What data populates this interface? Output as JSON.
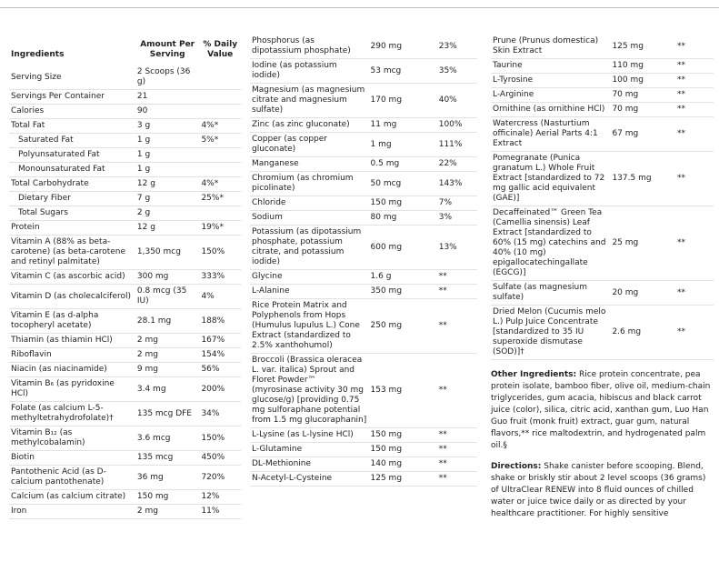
{
  "header": [
    "Ingredients",
    "Amount Per Serving",
    "% Daily Value"
  ],
  "columns": [
    [
      [
        "Serving Size",
        "2 Scoops (36 g)"
      ],
      [
        "Servings Per Container",
        "21"
      ],
      [
        "Calories",
        "90"
      ],
      [
        "Total Fat",
        "3 g",
        "4%*"
      ],
      [
        "Saturated Fat",
        "1 g",
        "5%*"
      ],
      [
        "Polyunsaturated Fat",
        "1 g"
      ],
      [
        "Monounsaturated Fat",
        "1 g"
      ],
      [
        "Total Carbohydrate",
        "12 g",
        "4%*"
      ],
      [
        "Dietary Fiber",
        "7 g",
        "25%*"
      ],
      [
        "Total Sugars",
        "2 g"
      ],
      [
        "Protein",
        "12 g",
        "19%*"
      ],
      [
        "Vitamin A (88% as beta-carotene) (as beta-carotene and retinyl palmitate)",
        "1,350 mcg",
        "150%"
      ],
      [
        "Vitamin C (as ascorbic acid)",
        "300 mg",
        "333%"
      ],
      [
        "Vitamin D (as cholecalciferol)",
        "0.8 mcg (35 IU)",
        "4%"
      ],
      [
        "Vitamin E (as d-alpha tocopheryl acetate)",
        "28.1 mg",
        "188%"
      ],
      [
        "Thiamin (as thiamin HCl)",
        "2 mg",
        "167%"
      ],
      [
        "Riboflavin",
        "2 mg",
        "154%"
      ],
      [
        "Niacin (as niacinamide)",
        "9 mg",
        "56%"
      ],
      [
        "Vitamin B₆ (as pyridoxine HCl)",
        "3.4 mg",
        "200%"
      ],
      [
        "Folate (as calcium L-5-methyltetrahydrofolate)†",
        "135 mcg DFE",
        "34%"
      ],
      [
        "Vitamin B₁₂ (as methylcobalamin)",
        "3.6 mcg",
        "150%"
      ],
      [
        "Biotin",
        "135 mcg",
        "450%"
      ],
      [
        "Pantothenic Acid (as D-calcium pantothenate)",
        "36 mg",
        "720%"
      ],
      [
        "Calcium (as calcium citrate)",
        "150 mg",
        "12%"
      ],
      [
        "Iron",
        "2 mg",
        "11%"
      ]
    ],
    [
      [
        "Phosphorus (as dipotassium phosphate)",
        "290 mg",
        "23%"
      ],
      [
        "Iodine (as potassium iodide)",
        "53 mcg",
        "35%"
      ],
      [
        "Magnesium (as magnesium citrate and magnesium sulfate)",
        "170 mg",
        "40%"
      ],
      [
        "Zinc (as zinc gluconate)",
        "11 mg",
        "100%"
      ],
      [
        "Copper (as copper gluconate)",
        "1 mg",
        "111%"
      ],
      [
        "Manganese",
        "0.5 mg",
        "22%"
      ],
      [
        "Chromium (as chromium picolinate)",
        "50 mcg",
        "143%"
      ],
      [
        "Chloride",
        "150 mg",
        "7%"
      ],
      [
        "Sodium",
        "80 mg",
        "3%"
      ],
      [
        "Potassium (as dipotassium phosphate, potassium citrate, and potassium iodide)",
        "600 mg",
        "13%"
      ],
      [
        "Glycine",
        "1.6 g",
        "**"
      ],
      [
        "L-Alanine",
        "350 mg",
        "**"
      ],
      [
        "Rice Protein Matrix and Polyphenols from Hops (Humulus lupulus L.) Cone Extract (standardized to 2.5% xanthohumol)",
        "250 mg",
        "**"
      ],
      [
        "Broccoli (Brassica oleracea L. var. italica) Sprout and Floret Powder™ (myrosinase activity 30 mg glucose/g) [providing 0.75 mg sulforaphane potential from 1.5 mg glucoraphanin]",
        "153 mg",
        "**"
      ],
      [
        "L-Lysine (as L-lysine HCl)",
        "150 mg",
        "**"
      ],
      [
        "L-Glutamine",
        "150 mg",
        "**"
      ],
      [
        "DL-Methionine",
        "140 mg",
        "**"
      ],
      [
        "N-Acetyl-L-Cysteine",
        "125 mg",
        "**"
      ]
    ],
    [
      [
        "Prune (Prunus domestica) Skin Extract",
        "125 mg",
        "**"
      ],
      [
        "Taurine",
        "110 mg",
        "**"
      ],
      [
        "L-Tyrosine",
        "100 mg",
        "**"
      ],
      [
        "L-Arginine",
        "70 mg",
        "**"
      ],
      [
        "Ornithine (as ornithine HCl)",
        "70 mg",
        "**"
      ],
      [
        "Watercress (Nasturtium officinale) Aerial Parts 4:1 Extract",
        "67 mg",
        "**"
      ],
      [
        "Pomegranate (Punica granatum L.) Whole Fruit Extract [standardized to 72 mg gallic acid equivalent (GAE)]",
        "137.5 mg",
        "**"
      ],
      [
        "Decaffeinated™ Green Tea (Camellia sinensis) Leaf Extract [standardized to 60% (15 mg) catechins and 40% (10 mg) epigallocatechingallate (EGCG)]",
        "25 mg",
        "**"
      ],
      [
        "Sulfate (as magnesium sulfate)",
        "20 mg",
        "**"
      ],
      [
        "Dried Melon (Cucumis melo L.) Pulp Juice Concentrate [standardized to 35 IU superoxide dismutase (SOD)]†",
        "2.6 mg",
        "**"
      ]
    ]
  ],
  "other_ingredients": {
    "label": "Other Ingredients:",
    "text": "Rice protein concentrate, pea protein isolate, bamboo fiber, olive oil, medium-chain triglycerides, gum acacia, hibiscus and black carrot juice (color), silica, citric acid, xanthan gum, Luo Han Guo fruit (monk fruit) extract, guar gum, natural flavors,** rice maltodextrin, and hydrogenated palm oil.§"
  },
  "directions": {
    "label": "Directions:",
    "text": "Shake canister before scooping. Blend, shake or briskly stir about 2 level scoops (36 grams) of UltraClear RENEW into 8 fluid ounces of chilled water or juice twice daily or as directed by your healthcare practitioner. For highly sensitive"
  }
}
